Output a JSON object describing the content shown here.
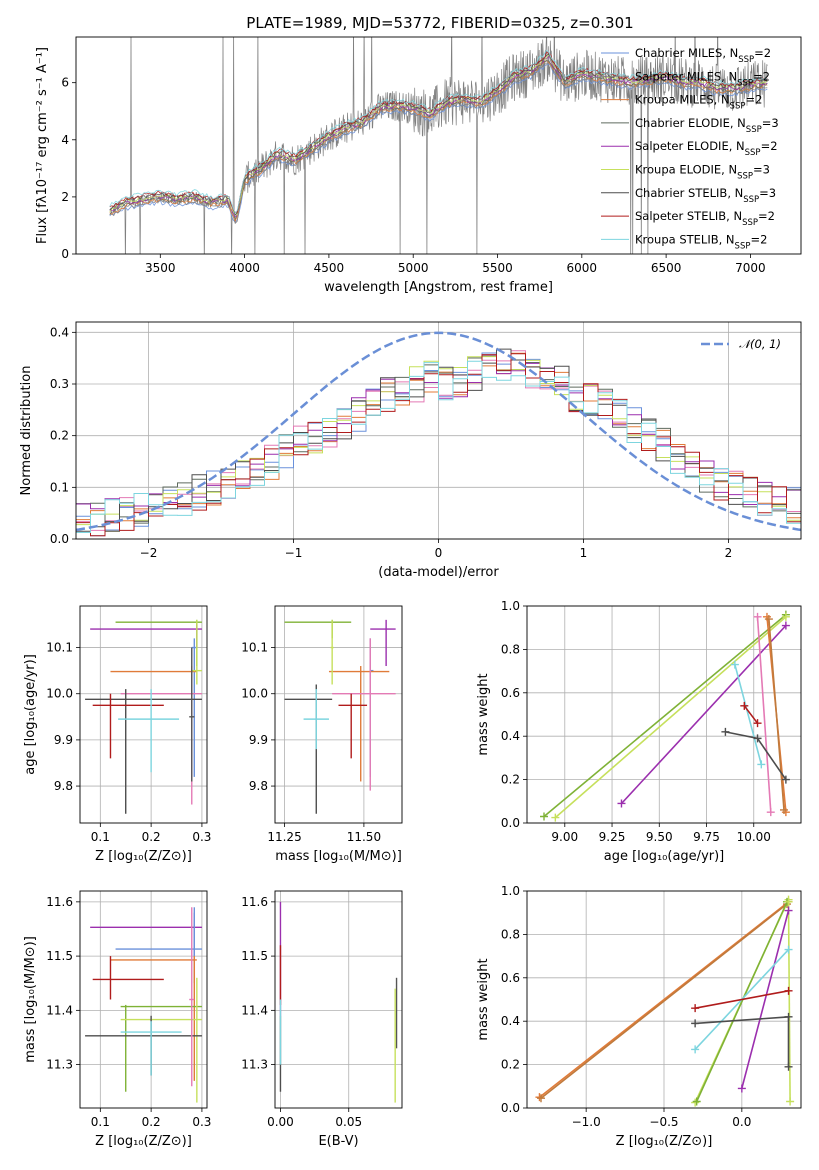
{
  "figure": {
    "title": "PLATE=1989, MJD=53772, FIBERID=0325, z=0.301"
  },
  "colors": {
    "palette": [
      "#6a91db",
      "#9b2fae",
      "#e07b39",
      "#5f6b5f",
      "#9b2fae",
      "#c6e05c",
      "#4d4d4d",
      "#b01c1c",
      "#7dd5df",
      "#e47ab5",
      "#7fb236",
      "#555555"
    ],
    "gray": "#808080",
    "gauss": "#6a8fd6"
  },
  "chart_data": [
    {
      "id": "spectrum",
      "type": "line",
      "title": "PLATE=1989, MJD=53772, FIBERID=0325, z=0.301",
      "xlabel": "wavelength [Angstrom, rest frame]",
      "ylabel": "Flux [fλ10⁻¹⁷ erg cm⁻² s⁻¹ A⁻¹]",
      "xlim": [
        3000,
        7300
      ],
      "ylim": [
        0,
        7.6
      ],
      "xticks": [
        3500,
        4000,
        4500,
        5000,
        5500,
        6000,
        6500,
        7000
      ],
      "yticks": [
        0,
        2,
        4,
        6
      ],
      "grid": false,
      "legend_position": "upper right",
      "legend": [
        {
          "label": "Chabrier MILES, N",
          "sub": "SSP",
          "suffix": "=2",
          "color": "#6a91db"
        },
        {
          "label": "Salpeter MILES, N",
          "sub": "SSP",
          "suffix": "=2",
          "color": "#808080"
        },
        {
          "label": "Kroupa MILES, N",
          "sub": "SSP",
          "suffix": "=2",
          "color": "#e07b39"
        },
        {
          "label": "Chabrier ELODIE, N",
          "sub": "SSP",
          "suffix": "=3",
          "color": "#5f6b5f"
        },
        {
          "label": "Salpeter ELODIE, N",
          "sub": "SSP",
          "suffix": "=2",
          "color": "#9b2fae"
        },
        {
          "label": "Kroupa ELODIE, N",
          "sub": "SSP",
          "suffix": "=3",
          "color": "#c6e05c"
        },
        {
          "label": "Chabrier STELIB, N",
          "sub": "SSP",
          "suffix": "=3",
          "color": "#4d4d4d"
        },
        {
          "label": "Salpeter STELIB, N",
          "sub": "SSP",
          "suffix": "=2",
          "color": "#b01c1c"
        },
        {
          "label": "Kroupa STELIB, N",
          "sub": "SSP",
          "suffix": "=2",
          "color": "#7dd5df"
        }
      ],
      "continuum": {
        "x": [
          3200,
          3300,
          3400,
          3500,
          3600,
          3700,
          3800,
          3900,
          3950,
          4000,
          4100,
          4200,
          4300,
          4400,
          4500,
          4600,
          4700,
          4800,
          4900,
          5000,
          5100,
          5200,
          5300,
          5400,
          5500,
          5600,
          5700,
          5800,
          5900,
          6000,
          6100,
          6200,
          6300,
          6400,
          6500,
          6600,
          6700,
          6800,
          6900,
          7000,
          7100
        ],
        "y": [
          1.5,
          1.8,
          1.9,
          2.0,
          1.9,
          2.0,
          1.8,
          1.9,
          1.2,
          2.6,
          3.0,
          3.5,
          3.3,
          3.7,
          4.1,
          4.4,
          4.6,
          5.1,
          5.2,
          5.1,
          4.9,
          5.3,
          5.4,
          5.3,
          5.7,
          6.2,
          6.4,
          6.9,
          6.0,
          6.3,
          6.2,
          6.1,
          6.0,
          6.1,
          6.2,
          6.0,
          6.0,
          5.8,
          5.8,
          5.9,
          6.0
        ]
      }
    },
    {
      "id": "residuals",
      "type": "line",
      "xlabel": "(data-model)/error",
      "ylabel": "Normed distribution",
      "xlim": [
        -2.5,
        2.5
      ],
      "ylim": [
        0,
        0.42
      ],
      "xticks": [
        -2,
        -1,
        0,
        1,
        2
      ],
      "yticks": [
        0.0,
        0.1,
        0.2,
        0.3,
        0.4
      ],
      "grid": true,
      "legend_position": "upper right",
      "gauss_label": "𝒩(0, 1)",
      "bins": {
        "start": -2.5,
        "width": 0.1,
        "count": 50
      },
      "base_profile": [
        0.035,
        0.04,
        0.045,
        0.05,
        0.055,
        0.06,
        0.07,
        0.08,
        0.09,
        0.1,
        0.11,
        0.12,
        0.13,
        0.15,
        0.17,
        0.19,
        0.2,
        0.21,
        0.22,
        0.24,
        0.27,
        0.28,
        0.29,
        0.3,
        0.31,
        0.3,
        0.31,
        0.32,
        0.33,
        0.34,
        0.33,
        0.32,
        0.31,
        0.3,
        0.28,
        0.27,
        0.26,
        0.24,
        0.22,
        0.2,
        0.18,
        0.16,
        0.14,
        0.12,
        0.11,
        0.1,
        0.09,
        0.08,
        0.07,
        0.065
      ]
    },
    {
      "id": "age_vs_Z",
      "type": "scatter",
      "xlabel": "Z [log₁₀(Z/Z⊙)]",
      "ylabel": "age  [log₁₀(age/yr)]",
      "xlim": [
        0.06,
        0.31
      ],
      "ylim": [
        9.72,
        10.19
      ],
      "xticks": [
        0.1,
        0.2,
        0.3
      ],
      "yticks": [
        9.8,
        9.9,
        10.0,
        10.1
      ],
      "grid": true,
      "points": [
        {
          "x": 0.29,
          "y": 10.155,
          "xerr": [
            0.13,
            0.3
          ],
          "yerr": [
            10.06,
            10.16
          ],
          "color": "#7fb236"
        },
        {
          "x": 0.29,
          "y": 10.14,
          "xerr": [
            0.08,
            0.3
          ],
          "yerr": [
            10.1,
            10.15
          ],
          "color": "#9b2fae"
        },
        {
          "x": 0.285,
          "y": 10.1,
          "xerr": [
            0.28,
            0.29
          ],
          "yerr": [
            9.82,
            10.12
          ],
          "color": "#6a91db"
        },
        {
          "x": 0.28,
          "y": 10.048,
          "xerr": [
            0.12,
            0.29
          ],
          "yerr": [
            9.92,
            10.06
          ],
          "color": "#e07b39"
        },
        {
          "x": 0.29,
          "y": 10.05,
          "xerr": [
            0.28,
            0.3
          ],
          "yerr": [
            10.02,
            10.16
          ],
          "color": "#c6e05c"
        },
        {
          "x": 0.28,
          "y": 10.0,
          "xerr": [
            0.14,
            0.3
          ],
          "yerr": [
            9.76,
            10.03
          ],
          "color": "#e47ab5"
        },
        {
          "x": 0.15,
          "y": 9.988,
          "xerr": [
            0.07,
            0.3
          ],
          "yerr": [
            9.74,
            10.01
          ],
          "color": "#4d4d4d"
        },
        {
          "x": 0.12,
          "y": 9.975,
          "xerr": [
            0.085,
            0.225
          ],
          "yerr": [
            9.86,
            10.0
          ],
          "color": "#b01c1c"
        },
        {
          "x": 0.2,
          "y": 9.945,
          "xerr": [
            0.135,
            0.255
          ],
          "yerr": [
            9.83,
            10.01
          ],
          "color": "#7dd5df"
        },
        {
          "x": 0.28,
          "y": 9.95,
          "xerr": [
            0.275,
            0.285
          ],
          "yerr": [
            9.81,
            10.1
          ],
          "color": "#555555"
        }
      ]
    },
    {
      "id": "age_vs_mass",
      "type": "scatter",
      "xlabel": "mass [log₁₀(M/M⊙)]",
      "xlim": [
        11.22,
        11.62
      ],
      "ylim": [
        9.72,
        10.19
      ],
      "xticks": [
        11.25,
        11.5
      ],
      "xtick_labels": [
        "11.25",
        "11.50"
      ],
      "yticks": [
        9.8,
        9.9,
        10.0,
        10.1
      ],
      "grid": true,
      "points": [
        {
          "x": 11.4,
          "y": 10.155,
          "xerr": [
            11.25,
            11.46
          ],
          "yerr": [
            10.12,
            10.16
          ],
          "color": "#7fb236"
        },
        {
          "x": 11.57,
          "y": 10.14,
          "xerr": [
            11.52,
            11.6
          ],
          "yerr": [
            10.06,
            10.16
          ],
          "color": "#9b2fae"
        },
        {
          "x": 11.52,
          "y": 10.05,
          "xerr": [
            11.52,
            11.53
          ],
          "yerr": [
            9.82,
            10.12
          ],
          "color": "#6a91db"
        },
        {
          "x": 11.49,
          "y": 10.048,
          "xerr": [
            11.39,
            11.58
          ],
          "yerr": [
            9.81,
            10.06
          ],
          "color": "#e07b39"
        },
        {
          "x": 11.4,
          "y": 10.1,
          "xerr": [
            11.395,
            11.405
          ],
          "yerr": [
            10.02,
            10.16
          ],
          "color": "#c6e05c"
        },
        {
          "x": 11.52,
          "y": 10.0,
          "xerr": [
            11.4,
            11.6
          ],
          "yerr": [
            9.79,
            10.12
          ],
          "color": "#e47ab5"
        },
        {
          "x": 11.35,
          "y": 9.988,
          "xerr": [
            11.25,
            11.4
          ],
          "yerr": [
            9.74,
            10.02
          ],
          "color": "#4d4d4d"
        },
        {
          "x": 11.46,
          "y": 9.975,
          "xerr": [
            11.42,
            11.51
          ],
          "yerr": [
            9.86,
            10.0
          ],
          "color": "#b01c1c"
        },
        {
          "x": 11.35,
          "y": 9.945,
          "xerr": [
            11.31,
            11.39
          ],
          "yerr": [
            9.88,
            10.01
          ],
          "color": "#7dd5df"
        }
      ]
    },
    {
      "id": "weight_vs_age",
      "type": "line",
      "xlabel": "age  [log₁₀(age/yr)]",
      "ylabel": "mass weight",
      "xlim": [
        8.8,
        10.25
      ],
      "ylim": [
        0,
        1.0
      ],
      "xticks": [
        9.0,
        9.25,
        9.5,
        9.75,
        10.0
      ],
      "xtick_labels": [
        "9.00",
        "9.25",
        "9.50",
        "9.75",
        "10.00"
      ],
      "yticks": [
        0.0,
        0.2,
        0.4,
        0.6,
        0.8,
        1.0
      ],
      "grid": true,
      "series": [
        {
          "color": "#7fb236",
          "x": [
            8.89,
            10.17
          ],
          "y": [
            0.03,
            0.96
          ]
        },
        {
          "color": "#c6e05c",
          "x": [
            8.95,
            10.17
          ],
          "y": [
            0.025,
            0.95
          ]
        },
        {
          "color": "#9b2fae",
          "x": [
            9.3,
            10.17
          ],
          "y": [
            0.09,
            0.91
          ]
        },
        {
          "color": "#e07b39",
          "x": [
            10.07,
            10.17
          ],
          "y": [
            0.95,
            0.05
          ]
        },
        {
          "color": "#c07a3c",
          "x": [
            10.08,
            10.16
          ],
          "y": [
            0.94,
            0.06
          ]
        },
        {
          "color": "#e47ab5",
          "x": [
            10.02,
            10.09
          ],
          "y": [
            0.95,
            0.05
          ]
        },
        {
          "color": "#7dd5df",
          "x": [
            9.9,
            10.04
          ],
          "y": [
            0.73,
            0.27
          ]
        },
        {
          "color": "#b01c1c",
          "x": [
            9.95,
            10.02
          ],
          "y": [
            0.54,
            0.46
          ]
        },
        {
          "color": "#4d4d4d",
          "x": [
            9.85,
            10.02,
            10.17
          ],
          "y": [
            0.42,
            0.39,
            0.2
          ]
        }
      ]
    },
    {
      "id": "mass_vs_Z",
      "type": "scatter",
      "xlabel": "Z [log₁₀(Z/Z⊙)]",
      "ylabel": "mass [log₁₀(M/M⊙)]",
      "xlim": [
        0.06,
        0.31
      ],
      "ylim": [
        11.22,
        11.62
      ],
      "xticks": [
        0.1,
        0.2,
        0.3
      ],
      "yticks": [
        11.3,
        11.4,
        11.5,
        11.6
      ],
      "grid": true,
      "points": [
        {
          "x": 0.285,
          "y": 11.553,
          "xerr": [
            0.08,
            0.3
          ],
          "yerr": [
            11.5,
            11.58
          ],
          "color": "#9b2fae"
        },
        {
          "x": 0.285,
          "y": 11.513,
          "xerr": [
            0.13,
            0.3
          ],
          "yerr": [
            11.45,
            11.59
          ],
          "color": "#6a91db"
        },
        {
          "x": 0.285,
          "y": 11.493,
          "xerr": [
            0.12,
            0.29
          ],
          "yerr": [
            11.27,
            11.5
          ],
          "color": "#e07b39"
        },
        {
          "x": 0.12,
          "y": 11.457,
          "xerr": [
            0.085,
            0.225
          ],
          "yerr": [
            11.42,
            11.5
          ],
          "color": "#b01c1c"
        },
        {
          "x": 0.15,
          "y": 11.407,
          "xerr": [
            0.14,
            0.3
          ],
          "yerr": [
            11.25,
            11.41
          ],
          "color": "#7fb236"
        },
        {
          "x": 0.29,
          "y": 11.383,
          "xerr": [
            0.14,
            0.3
          ],
          "yerr": [
            11.23,
            11.46
          ],
          "color": "#c6e05c"
        },
        {
          "x": 0.2,
          "y": 11.353,
          "xerr": [
            0.07,
            0.3
          ],
          "yerr": [
            11.28,
            11.39
          ],
          "color": "#4d4d4d"
        },
        {
          "x": 0.2,
          "y": 11.36,
          "xerr": [
            0.14,
            0.26
          ],
          "yerr": [
            11.28,
            11.38
          ],
          "color": "#7dd5df"
        },
        {
          "x": 0.28,
          "y": 11.42,
          "xerr": [
            0.275,
            0.285
          ],
          "yerr": [
            11.26,
            11.59
          ],
          "color": "#e47ab5"
        }
      ]
    },
    {
      "id": "mass_vs_ebv",
      "type": "scatter",
      "xlabel": "E(B-V)",
      "xlim": [
        -0.004,
        0.089
      ],
      "ylim": [
        11.22,
        11.62
      ],
      "xticks": [
        0.0,
        0.05
      ],
      "xtick_labels": [
        "0.00",
        "0.05"
      ],
      "yticks": [
        11.3,
        11.4,
        11.5,
        11.6
      ],
      "grid": true,
      "points": [
        {
          "x": 0.0,
          "y": 11.5,
          "xerr": [
            0.0,
            0.0
          ],
          "yerr": [
            11.39,
            11.6
          ],
          "color": "#9b2fae"
        },
        {
          "x": 0.0,
          "y": 11.47,
          "xerr": [
            0.0,
            0.0
          ],
          "yerr": [
            11.41,
            11.52
          ],
          "color": "#b01c1c"
        },
        {
          "x": 0.0,
          "y": 11.33,
          "xerr": [
            0.0,
            0.0
          ],
          "yerr": [
            11.25,
            11.39
          ],
          "color": "#4d4d4d"
        },
        {
          "x": 0.0,
          "y": 11.36,
          "xerr": [
            0.0,
            0.0
          ],
          "yerr": [
            11.3,
            11.42
          ],
          "color": "#7dd5df"
        },
        {
          "x": 0.085,
          "y": 11.4,
          "xerr": [
            0.085,
            0.085
          ],
          "yerr": [
            11.33,
            11.46
          ],
          "color": "#555555"
        },
        {
          "x": 0.084,
          "y": 11.35,
          "xerr": [
            0.084,
            0.084
          ],
          "yerr": [
            11.23,
            11.44
          ],
          "color": "#c6e05c"
        }
      ]
    },
    {
      "id": "weight_vs_Z",
      "type": "line",
      "xlabel": "Z [log₁₀(Z/Z⊙)]",
      "ylabel": "mass weight",
      "xlim": [
        -1.38,
        0.38
      ],
      "ylim": [
        0,
        1.0
      ],
      "xticks": [
        -1.0,
        -0.5,
        0.0
      ],
      "xtick_labels": [
        "−1.0",
        "−0.5",
        "0.0"
      ],
      "yticks": [
        0.0,
        0.2,
        0.4,
        0.6,
        0.8,
        1.0
      ],
      "grid": true,
      "series": [
        {
          "color": "#e07b39",
          "x": [
            -1.3,
            0.3
          ],
          "y": [
            0.05,
            0.95
          ]
        },
        {
          "color": "#c07a3c",
          "x": [
            -1.29,
            0.29
          ],
          "y": [
            0.045,
            0.94
          ]
        },
        {
          "color": "#c6e05c",
          "x": [
            -0.3,
            0.3
          ],
          "y": [
            0.025,
            0.96
          ]
        },
        {
          "color": "#7fb236",
          "x": [
            -0.29,
            0.29
          ],
          "y": [
            0.03,
            0.95
          ]
        },
        {
          "color": "#c6e05c",
          "x": [
            0.3,
            0.31
          ],
          "y": [
            0.95,
            0.03
          ]
        },
        {
          "color": "#9b2fae",
          "x": [
            0.0,
            0.3
          ],
          "y": [
            0.09,
            0.91
          ]
        },
        {
          "color": "#7dd5df",
          "x": [
            -0.3,
            0.3
          ],
          "y": [
            0.27,
            0.73
          ]
        },
        {
          "color": "#b01c1c",
          "x": [
            -0.3,
            0.3
          ],
          "y": [
            0.46,
            0.54
          ]
        },
        {
          "color": "#4d4d4d",
          "x": [
            -0.3,
            0.3,
            0.3
          ],
          "y": [
            0.39,
            0.42,
            0.19
          ]
        }
      ]
    }
  ]
}
